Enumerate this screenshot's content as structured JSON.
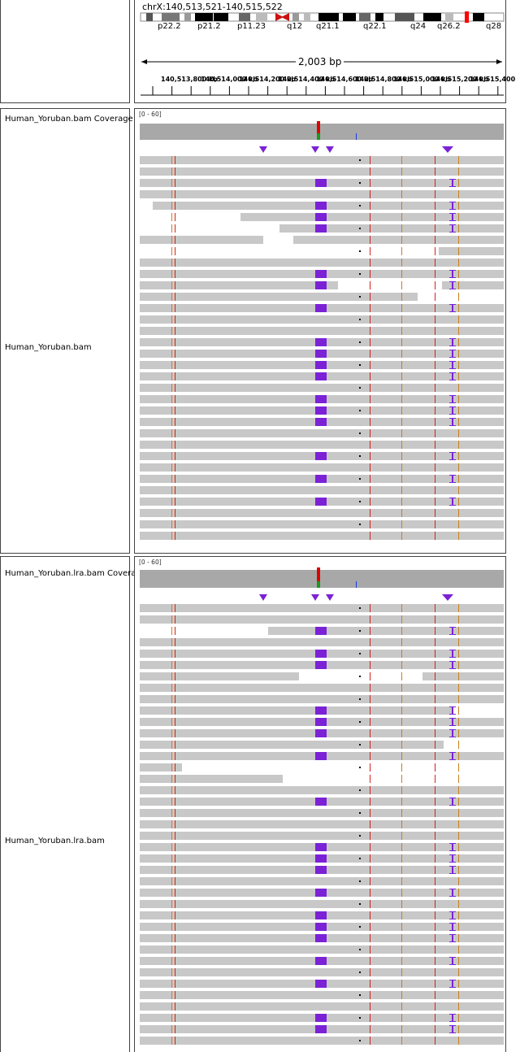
{
  "header": {
    "locus": "chrX:140,513,521-140,515,522",
    "span": "2,003 bp",
    "bands": [
      "p22.2",
      "p21.2",
      "p11.23",
      "q12",
      "q21.1",
      "q22.1",
      "q24",
      "q26.2",
      "q28"
    ],
    "tick_labels": [
      "140,513,800 kb",
      "140,514,000 kb",
      "140,514,200 kb",
      "140,514,400 kb",
      "140,514,600 kb",
      "140,514,800 kb",
      "140,515,000 kb",
      "140,515,200 kb",
      "140,515,400"
    ]
  },
  "tracks": [
    {
      "coverage_name": "Human_Yoruban.bam Coverage",
      "range": "[0 - 60]",
      "alignment_name": "Human_Yoruban.bam"
    },
    {
      "coverage_name": "Human_Yoruban.lra.bam Coverage",
      "range": "[0 - 60]",
      "alignment_name": "Human_Yoruban.lra.bam"
    }
  ],
  "colors": {
    "read": "#c8c8c8",
    "coverage": "#a8a8a8",
    "insertion": "#7b22d6",
    "mismatch_red": "#d42020",
    "mismatch_orange": "#c8801e",
    "centromere": "#cc1111",
    "band_dark": "#000000"
  }
}
